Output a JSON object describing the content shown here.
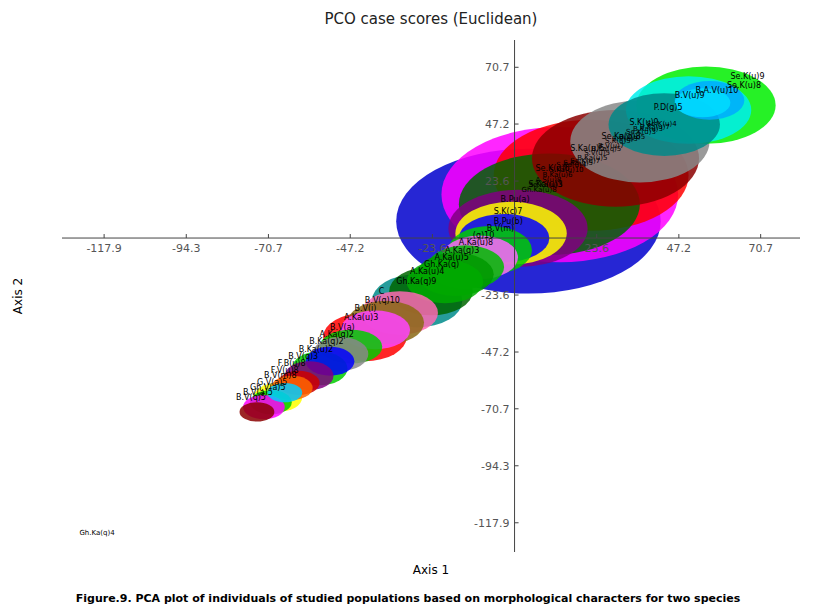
{
  "chart_data": {
    "type": "ellipse",
    "title": "PCO case scores (Euclidean)",
    "x_label": "Axis 1",
    "y_label": "Axis 2",
    "caption": "Figure.9. PCA plot of individuals of studied populations based on morphological characters for two species",
    "xlim": [
      -130,
      82
    ],
    "ylim": [
      -130,
      82
    ],
    "xticks": [
      -117.9,
      -94.3,
      -70.7,
      -47.2,
      -23.6,
      23.6,
      47.2,
      70.7
    ],
    "yticks": [
      -117.9,
      -94.3,
      -70.7,
      -47.2,
      -23.6,
      23.6,
      47.2,
      70.7
    ],
    "series": [
      {
        "name": "Se.K(u)9",
        "color": "#00ee00",
        "cx": 55,
        "cy": 55,
        "rx": 20,
        "ry": 16,
        "label_x": 62,
        "label_y": 67
      },
      {
        "name": "Se.K(u)8",
        "color": "#00aaff",
        "cx": 56,
        "cy": 57,
        "rx": 10,
        "ry": 8,
        "label_x": 61,
        "label_y": 63
      },
      {
        "name": "B.A.V(u)10",
        "color": "#00ddff",
        "cx": 54,
        "cy": 56,
        "rx": 8,
        "ry": 6,
        "label_x": 52,
        "label_y": 61
      },
      {
        "name": "B.V(u)9",
        "color": "#00eeee",
        "cx": 50,
        "cy": 53,
        "rx": 18,
        "ry": 14,
        "label_x": 46,
        "label_y": 59
      },
      {
        "name": "P.D(g)5",
        "color": "#008888",
        "cx": 43,
        "cy": 47,
        "rx": 16,
        "ry": 13,
        "label_x": 40,
        "label_y": 54
      },
      {
        "name": "S.K(u)9",
        "color": "#888888",
        "cx": 36,
        "cy": 40,
        "rx": 20,
        "ry": 17,
        "label_x": 33,
        "label_y": 48
      },
      {
        "name": "Se.Ka(q)8",
        "color": "#8b0000",
        "cx": 29,
        "cy": 33,
        "rx": 24,
        "ry": 20,
        "label_x": 25,
        "label_y": 42
      },
      {
        "name": "S.Ka(u)5",
        "color": "#ff0000",
        "cx": 22,
        "cy": 26,
        "rx": 28,
        "ry": 23,
        "label_x": 16,
        "label_y": 37
      },
      {
        "name": "Se.K(u)6",
        "color": "#ff00ff",
        "cx": 13,
        "cy": 18,
        "rx": 34,
        "ry": 28,
        "label_x": 6,
        "label_y": 29
      },
      {
        "name": "S.Ka(u)3",
        "color": "#006400",
        "cx": 10,
        "cy": 14,
        "rx": 26,
        "ry": 21,
        "label_x": 4,
        "label_y": 22
      },
      {
        "name": "B.Pu(a)",
        "color": "#0000cc",
        "cx": 4,
        "cy": 7,
        "rx": 38,
        "ry": 30,
        "label_x": -4,
        "label_y": 16
      },
      {
        "name": "S.K(c)7",
        "color": "#800080",
        "cx": 1,
        "cy": 4,
        "rx": 20,
        "ry": 16,
        "label_x": -6,
        "label_y": 11
      },
      {
        "name": "B.Pu(b)",
        "color": "#ffff00",
        "cx": -1,
        "cy": 2,
        "rx": 16,
        "ry": 13,
        "label_x": -6,
        "label_y": 7
      },
      {
        "name": "B.V(m)",
        "color": "#0000ff",
        "cx": -3,
        "cy": 0,
        "rx": 13,
        "ry": 10,
        "label_x": -8,
        "label_y": 4
      },
      {
        "name": "(q)10",
        "color": "#00cc00",
        "cx": -7,
        "cy": -5,
        "rx": 12,
        "ry": 10,
        "label_x": -12,
        "label_y": 1
      },
      {
        "name": "A.Ka(u)8",
        "color": "#ff66ff",
        "cx": -10,
        "cy": -8,
        "rx": 11,
        "ry": 9,
        "label_x": -16,
        "label_y": -2
      },
      {
        "name": "A.Ka(q)3",
        "color": "#00bb00",
        "cx": -14,
        "cy": -12,
        "rx": 11,
        "ry": 9,
        "label_x": -20,
        "label_y": -5
      },
      {
        "name": "A.Ka(u)5",
        "color": "#009900",
        "cx": -17,
        "cy": -15,
        "rx": 11,
        "ry": 9,
        "label_x": -23,
        "label_y": -8
      },
      {
        "name": "Gh.Ka(q)",
        "color": "#00aa00",
        "cx": -20,
        "cy": -18,
        "rx": 11,
        "ry": 9,
        "label_x": -26,
        "label_y": -11
      },
      {
        "name": "A.Ka(u)4",
        "color": "#006600",
        "cx": -24,
        "cy": -22,
        "rx": 12,
        "ry": 10,
        "label_x": -30,
        "label_y": -14
      },
      {
        "name": "Gh.Ka(q)9",
        "color": "#008b8b",
        "cx": -28,
        "cy": -26,
        "rx": 13,
        "ry": 11,
        "label_x": -34,
        "label_y": -18
      },
      {
        "name": "C",
        "color": "#ff69b4",
        "cx": -33,
        "cy": -31,
        "rx": 11,
        "ry": 9,
        "label_x": -39,
        "label_y": -22
      },
      {
        "name": "B.V(q)10",
        "color": "#8b6914",
        "cx": -37,
        "cy": -35,
        "rx": 11,
        "ry": 9,
        "label_x": -43,
        "label_y": -26
      },
      {
        "name": "B.V(i)",
        "color": "#ff44ff",
        "cx": -40,
        "cy": -38,
        "rx": 10,
        "ry": 8,
        "label_x": -46,
        "label_y": -29
      },
      {
        "name": "A.Ka(u)3",
        "color": "#ff0000",
        "cx": -43,
        "cy": -41,
        "rx": 12,
        "ry": 10,
        "label_x": -49,
        "label_y": -33
      },
      {
        "name": "B.V(a)",
        "color": "#00cc00",
        "cx": -47,
        "cy": -45,
        "rx": 9,
        "ry": 7,
        "label_x": -53,
        "label_y": -37
      },
      {
        "name": "A.Ka(q)2",
        "color": "#888888",
        "cx": -50,
        "cy": -48,
        "rx": 8,
        "ry": 7,
        "label_x": -56,
        "label_y": -40
      },
      {
        "name": "B.Ka(q)2",
        "color": "#0000ff",
        "cx": -53,
        "cy": -51,
        "rx": 7,
        "ry": 6,
        "label_x": -59,
        "label_y": -43
      },
      {
        "name": "B.Ka(u)2",
        "color": "#00cc00",
        "cx": -56,
        "cy": -54,
        "rx": 8,
        "ry": 7,
        "label_x": -62,
        "label_y": -46
      },
      {
        "name": "B.V(q)3",
        "color": "#800080",
        "cx": -59,
        "cy": -57,
        "rx": 7,
        "ry": 6,
        "label_x": -65,
        "label_y": -49
      },
      {
        "name": "F.B(u)8",
        "color": "#cc0000",
        "cx": -62,
        "cy": -60,
        "rx": 6,
        "ry": 5,
        "label_x": -68,
        "label_y": -52
      },
      {
        "name": "F.V(u)8",
        "color": "#ff6600",
        "cx": -64,
        "cy": -62,
        "rx": 6,
        "ry": 5,
        "label_x": -70,
        "label_y": -55
      },
      {
        "name": "B.V(m)8",
        "color": "#00ccff",
        "cx": -66,
        "cy": -64,
        "rx": 5,
        "ry": 4,
        "label_x": -72,
        "label_y": -57
      },
      {
        "name": "G.V(a)5",
        "color": "#ffff00",
        "cx": -68,
        "cy": -66,
        "rx": 7,
        "ry": 6,
        "label_x": -74,
        "label_y": -60
      },
      {
        "name": "Gh.V(a)5",
        "color": "#00cc00",
        "cx": -70,
        "cy": -68,
        "rx": 6,
        "ry": 5,
        "label_x": -76,
        "label_y": -62
      },
      {
        "name": "B.V(a)5",
        "color": "#ff00ff",
        "cx": -72,
        "cy": -70,
        "rx": 6,
        "ry": 5,
        "label_x": -78,
        "label_y": -64
      },
      {
        "name": "B.V(q)5",
        "color": "#8b0000",
        "cx": -74,
        "cy": -72,
        "rx": 5,
        "ry": 4,
        "label_x": -80,
        "label_y": -66
      }
    ],
    "annotations": [
      {
        "text": "S.Ka(u)10",
        "x": 10,
        "y": 28
      },
      {
        "text": "Se.K(u)7",
        "x": 16,
        "y": 32
      },
      {
        "text": "B.Ka(u)6",
        "x": 8,
        "y": 26
      },
      {
        "text": "S.V(u)5",
        "x": 20,
        "y": 35
      },
      {
        "text": "A.S(u)8",
        "x": 6,
        "y": 24
      },
      {
        "text": "B.Ka(q)5",
        "x": 22,
        "y": 37
      },
      {
        "text": "Se.Ka(u)3",
        "x": 4,
        "y": 22
      },
      {
        "text": "B.V(u)7",
        "x": 24,
        "y": 38
      },
      {
        "text": "S.Ka(u)4",
        "x": 12,
        "y": 30
      },
      {
        "text": "S.K(u)5",
        "x": 26,
        "y": 40
      },
      {
        "text": "B.Ka(u)5",
        "x": 18,
        "y": 33
      },
      {
        "text": "S.Ka(q)5",
        "x": 14,
        "y": 31
      },
      {
        "text": "S.V(u)3",
        "x": 28,
        "y": 41
      },
      {
        "text": "B.V(u)5",
        "x": 30,
        "y": 42
      },
      {
        "text": "Se.K(u)3",
        "x": 32,
        "y": 44
      },
      {
        "text": "B.Ka(u)3",
        "x": 34,
        "y": 45
      },
      {
        "text": "Gh.Ka(u)8",
        "x": 2,
        "y": 20
      },
      {
        "text": "B.Ka(u)7",
        "x": 36,
        "y": 46
      },
      {
        "text": "Se.K(u)4",
        "x": 38,
        "y": 47
      },
      {
        "text": "Gh.Ka(q)4",
        "x": -125,
        "y": -122
      }
    ]
  }
}
